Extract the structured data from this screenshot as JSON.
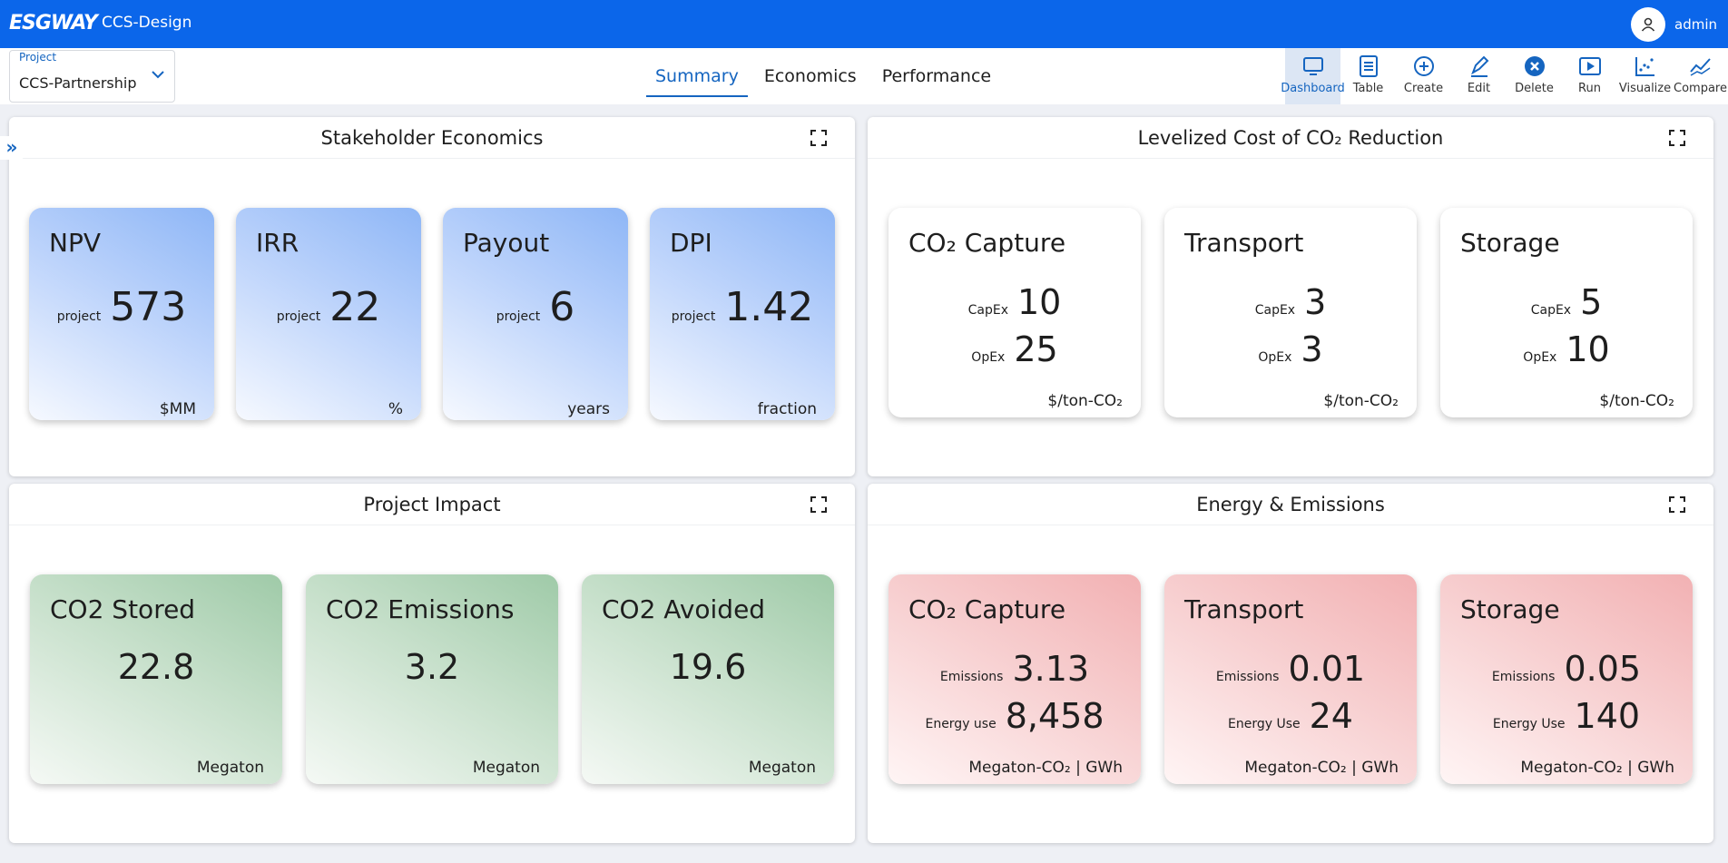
{
  "header": {
    "brand": "ESGWAY",
    "app": "CCS-Design",
    "user": "admin"
  },
  "project": {
    "label": "Project",
    "value": "CCS-Partnership"
  },
  "tabs": [
    "Summary",
    "Economics",
    "Performance"
  ],
  "toolbar": [
    "Dashboard",
    "Table",
    "Create",
    "Edit",
    "Delete",
    "Run",
    "Visualize",
    "Compare"
  ],
  "panels": [
    {
      "title": "Stakeholder Economics",
      "style": "blue",
      "cards": [
        {
          "title": "NPV",
          "rows": [
            {
              "label": "project",
              "value": 573
            }
          ],
          "unit": "$MM"
        },
        {
          "title": "IRR",
          "rows": [
            {
              "label": "project",
              "value": 22
            }
          ],
          "unit": "%"
        },
        {
          "title": "Payout",
          "rows": [
            {
              "label": "project",
              "value": 6
            }
          ],
          "unit": "years"
        },
        {
          "title": "DPI",
          "rows": [
            {
              "label": "project",
              "value": 1.42
            }
          ],
          "unit": "fraction"
        }
      ]
    },
    {
      "title": "Levelized Cost of CO₂ Reduction",
      "style": "white",
      "cards": [
        {
          "title": "CO₂ Capture",
          "rows": [
            {
              "label": "CapEx",
              "value": 10
            },
            {
              "label": "OpEx",
              "value": 25
            }
          ],
          "unit": "$/ton-CO₂"
        },
        {
          "title": "Transport",
          "rows": [
            {
              "label": "CapEx",
              "value": 3
            },
            {
              "label": "OpEx",
              "value": 3
            }
          ],
          "unit": "$/ton-CO₂"
        },
        {
          "title": "Storage",
          "rows": [
            {
              "label": "CapEx",
              "value": 5
            },
            {
              "label": "OpEx",
              "value": 10
            }
          ],
          "unit": "$/ton-CO₂"
        }
      ]
    },
    {
      "title": "Project Impact",
      "style": "green",
      "cards": [
        {
          "title": "CO2 Stored",
          "rows": [
            {
              "value": 22.8
            }
          ],
          "unit": "Megaton"
        },
        {
          "title": "CO2 Emissions",
          "rows": [
            {
              "value": 3.2
            }
          ],
          "unit": "Megaton"
        },
        {
          "title": "CO2 Avoided",
          "rows": [
            {
              "value": 19.6
            }
          ],
          "unit": "Megaton"
        }
      ]
    },
    {
      "title": "Energy & Emissions",
      "style": "red",
      "cards": [
        {
          "title": "CO₂ Capture",
          "rows": [
            {
              "label": "Emissions",
              "value": 3.13
            },
            {
              "label": "Energy use",
              "value": "8,458"
            }
          ],
          "unit": "Megaton-CO₂ | GWh"
        },
        {
          "title": "Transport",
          "rows": [
            {
              "label": "Emissions",
              "value": 0.01
            },
            {
              "label": "Energy Use",
              "value": 24
            }
          ],
          "unit": "Megaton-CO₂ | GWh"
        },
        {
          "title": "Storage",
          "rows": [
            {
              "label": "Emissions",
              "value": 0.05
            },
            {
              "label": "Energy Use",
              "value": 140
            }
          ],
          "unit": "Megaton-CO₂ | GWh"
        }
      ]
    }
  ]
}
